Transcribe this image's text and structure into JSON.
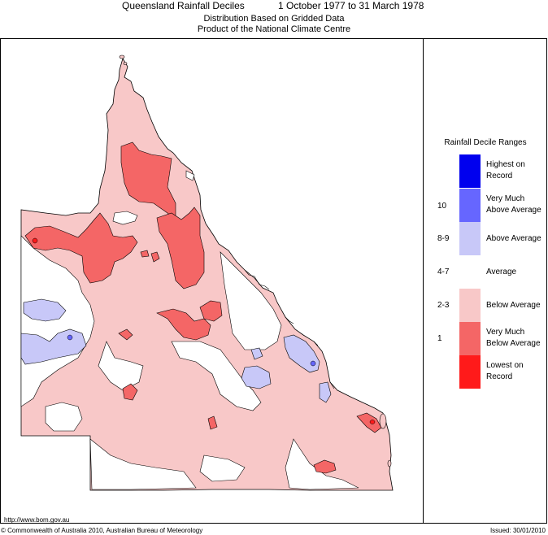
{
  "title": "Queensland Rainfall Deciles",
  "period": "1 October 1977 to 31 March 1978",
  "subtitle_1": "Distribution Based on Gridded Data",
  "subtitle_2": "Product of the National Climate Centre",
  "legend": {
    "title": "Rainfall Decile Ranges",
    "items": [
      {
        "code": "",
        "label_1": "Highest on",
        "label_2": "Record",
        "color": "#0000ee"
      },
      {
        "code": "10",
        "label_1": "Very Much",
        "label_2": "Above Average",
        "color": "#6666ff"
      },
      {
        "code": "8-9",
        "label_1": "Above Average",
        "label_2": "",
        "color": "#c8c8f8"
      },
      {
        "code": "4-7",
        "label_1": "Average",
        "label_2": "",
        "color": "#ffffff"
      },
      {
        "code": "2-3",
        "label_1": "Below Average",
        "label_2": "",
        "color": "#f8c8c8"
      },
      {
        "code": "1",
        "label_1": "Very Much",
        "label_2": "Below Average",
        "color": "#f46666"
      },
      {
        "code": "",
        "label_1": "Lowest on",
        "label_2": "Record",
        "color": "#ff1a1a"
      }
    ]
  },
  "footer": {
    "url": "http://www.bom.gov.au",
    "copyright": "© Commonwealth of Australia 2010, Australian Bureau of Meteorology",
    "issued": "Issued: 30/01/2010"
  }
}
